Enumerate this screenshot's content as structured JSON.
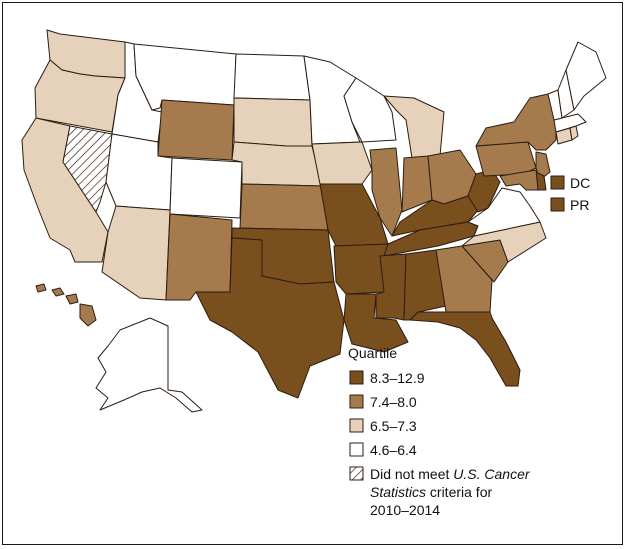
{
  "legend": {
    "title": "Quartile",
    "items": [
      {
        "label": "8.3–12.9",
        "fill": "#7a4f1e"
      },
      {
        "label": "7.4–8.0",
        "fill": "#a57b4e"
      },
      {
        "label": "6.5–7.3",
        "fill": "#e6d2bb"
      },
      {
        "label": "4.6–6.4",
        "fill": "#ffffff"
      }
    ],
    "not_met": {
      "prefix": "Did not meet ",
      "italic": "U.S. Cancer Statistics",
      "suffix": " criteria for",
      "years": "2010–2014"
    }
  },
  "territories": [
    {
      "label": "DC",
      "quartile": "8.3–12.9"
    },
    {
      "label": "PR",
      "quartile": "8.3–12.9"
    }
  ],
  "colors": {
    "q1": "#7a4f1e",
    "q2": "#a57b4e",
    "q3": "#e6d2bb",
    "q4": "#ffffff",
    "stroke": "#2b1d10"
  },
  "states": [
    {
      "abbr": "WA",
      "quartile": "6.5–7.3"
    },
    {
      "abbr": "OR",
      "quartile": "6.5–7.3"
    },
    {
      "abbr": "CA",
      "quartile": "6.5–7.3"
    },
    {
      "abbr": "ID",
      "quartile": "4.6–6.4"
    },
    {
      "abbr": "NV",
      "quartile": "Did not meet criteria"
    },
    {
      "abbr": "MT",
      "quartile": "4.6–6.4"
    },
    {
      "abbr": "WY",
      "quartile": "7.4–8.0"
    },
    {
      "abbr": "UT",
      "quartile": "4.6–6.4"
    },
    {
      "abbr": "CO",
      "quartile": "4.6–6.4"
    },
    {
      "abbr": "AZ",
      "quartile": "6.5–7.3"
    },
    {
      "abbr": "NM",
      "quartile": "7.4–8.0"
    },
    {
      "abbr": "ND",
      "quartile": "4.6–6.4"
    },
    {
      "abbr": "SD",
      "quartile": "6.5–7.3"
    },
    {
      "abbr": "NE",
      "quartile": "6.5–7.3"
    },
    {
      "abbr": "KS",
      "quartile": "7.4–8.0"
    },
    {
      "abbr": "OK",
      "quartile": "8.3–12.9"
    },
    {
      "abbr": "TX",
      "quartile": "8.3–12.9"
    },
    {
      "abbr": "MN",
      "quartile": "4.6–6.4"
    },
    {
      "abbr": "IA",
      "quartile": "6.5–7.3"
    },
    {
      "abbr": "MO",
      "quartile": "8.3–12.9"
    },
    {
      "abbr": "AR",
      "quartile": "8.3–12.9"
    },
    {
      "abbr": "LA",
      "quartile": "8.3–12.9"
    },
    {
      "abbr": "WI",
      "quartile": "4.6–6.4"
    },
    {
      "abbr": "IL",
      "quartile": "7.4–8.0"
    },
    {
      "abbr": "MI",
      "quartile": "6.5–7.3"
    },
    {
      "abbr": "IN",
      "quartile": "7.4–8.0"
    },
    {
      "abbr": "OH",
      "quartile": "7.4–8.0"
    },
    {
      "abbr": "KY",
      "quartile": "8.3–12.9"
    },
    {
      "abbr": "TN",
      "quartile": "8.3–12.9"
    },
    {
      "abbr": "MS",
      "quartile": "8.3–12.9"
    },
    {
      "abbr": "AL",
      "quartile": "8.3–12.9"
    },
    {
      "abbr": "GA",
      "quartile": "7.4–8.0"
    },
    {
      "abbr": "FL",
      "quartile": "8.3–12.9"
    },
    {
      "abbr": "SC",
      "quartile": "7.4–8.0"
    },
    {
      "abbr": "NC",
      "quartile": "6.5–7.3"
    },
    {
      "abbr": "VA",
      "quartile": "4.6–6.4"
    },
    {
      "abbr": "WV",
      "quartile": "8.3–12.9"
    },
    {
      "abbr": "PA",
      "quartile": "7.4–8.0"
    },
    {
      "abbr": "NY",
      "quartile": "7.4–8.0"
    },
    {
      "abbr": "NJ",
      "quartile": "7.4–8.0"
    },
    {
      "abbr": "DE",
      "quartile": "8.3–12.9"
    },
    {
      "abbr": "MD",
      "quartile": "7.4–8.0"
    },
    {
      "abbr": "CT",
      "quartile": "6.5–7.3"
    },
    {
      "abbr": "RI",
      "quartile": "6.5–7.3"
    },
    {
      "abbr": "MA",
      "quartile": "4.6–6.4"
    },
    {
      "abbr": "VT",
      "quartile": "4.6–6.4"
    },
    {
      "abbr": "NH",
      "quartile": "4.6–6.4"
    },
    {
      "abbr": "ME",
      "quartile": "4.6–6.4"
    },
    {
      "abbr": "AK",
      "quartile": "4.6–6.4"
    },
    {
      "abbr": "HI",
      "quartile": "7.4–8.0"
    }
  ]
}
